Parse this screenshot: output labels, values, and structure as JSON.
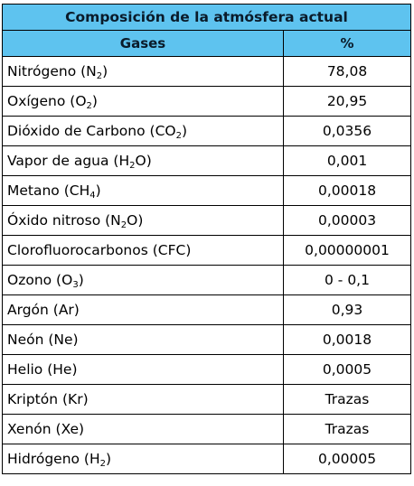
{
  "table": {
    "title": "Composición de la atmósfera actual",
    "headers": {
      "gas": "Gases",
      "percent": "%"
    },
    "header_color": "#5ec3ef",
    "rows": [
      {
        "name": "Nitrógeno (N",
        "sub": "2",
        "suffix": ")",
        "value": "78,08"
      },
      {
        "name": "Oxígeno (O",
        "sub": "2",
        "suffix": ")",
        "value": "20,95"
      },
      {
        "name": "Dióxido de Carbono (CO",
        "sub": "2",
        "suffix": ")",
        "value": "0,0356"
      },
      {
        "name": "Vapor de agua (H",
        "sub": "2",
        "suffix": "O)",
        "value": "0,001"
      },
      {
        "name": "Metano (CH",
        "sub": "4",
        "suffix": ")",
        "value": "0,00018"
      },
      {
        "name": "Óxido nitroso (N",
        "sub": "2",
        "suffix": "O)",
        "value": "0,00003"
      },
      {
        "name": "Clorofluorocarbonos (CFC)",
        "sub": "",
        "suffix": "",
        "value": "0,00000001"
      },
      {
        "name": "Ozono (O",
        "sub": "3",
        "suffix": ")",
        "value": "0 - 0,1"
      },
      {
        "name": "Argón (Ar)",
        "sub": "",
        "suffix": "",
        "value": "0,93"
      },
      {
        "name": "Neón (Ne)",
        "sub": "",
        "suffix": "",
        "value": "0,0018"
      },
      {
        "name": "Helio (He)",
        "sub": "",
        "suffix": "",
        "value": "0,0005"
      },
      {
        "name": "Kriptón (Kr)",
        "sub": "",
        "suffix": "",
        "value": "Trazas"
      },
      {
        "name": "Xenón (Xe)",
        "sub": "",
        "suffix": "",
        "value": "Trazas"
      },
      {
        "name": "Hidrógeno (H",
        "sub": "2",
        "suffix": ")",
        "value": "0,00005"
      }
    ]
  }
}
